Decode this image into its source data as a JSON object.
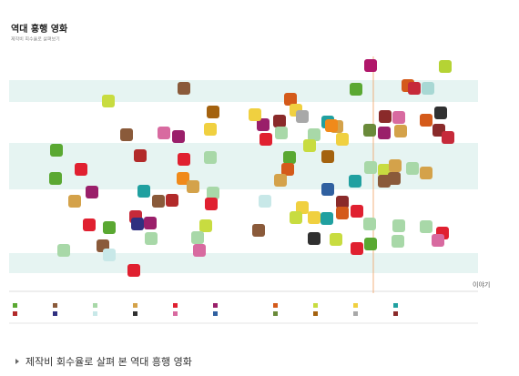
{
  "chart_data": {
    "type": "scatter",
    "title": "역대 흥행 영화",
    "subtitle": "제작비 회수율로 살펴보기",
    "brand": "이야기",
    "caption": "제작비 회수율로 살펴 본 역대 흥행 영화",
    "xlim": [
      0,
      515
    ],
    "ylim": [
      0,
      260
    ],
    "x": [
      397,
      479,
      381,
      438,
      445,
      460,
      109,
      192,
      309,
      224,
      315,
      322,
      279,
      297,
      270,
      350,
      360,
      413,
      428,
      458,
      474,
      129,
      170,
      186,
      221,
      335,
      354,
      366,
      396,
      412,
      430,
      472,
      482,
      299,
      282,
      330,
      52,
      144,
      221,
      192,
      350,
      308,
      397,
      412,
      424,
      443,
      458,
      79,
      306,
      51,
      191,
      298,
      380,
      412,
      423,
      91,
      148,
      202,
      224,
      350,
      164,
      179,
      222,
      72,
      281,
      322,
      366,
      366,
      349,
      382,
      139,
      141,
      155,
      315,
      335,
      88,
      110,
      216,
      396,
      428,
      458,
      476,
      274,
      207,
      156,
      335,
      359,
      382,
      397,
      471,
      209,
      60,
      103,
      110,
      137,
      427
    ],
    "y": [
      248,
      247,
      222,
      226,
      223,
      223,
      209,
      223,
      211,
      197,
      199,
      192,
      183,
      187,
      194,
      186,
      181,
      192,
      191,
      188,
      196,
      172,
      174,
      170,
      178,
      172,
      182,
      167,
      177,
      174,
      176,
      177,
      169,
      174,
      167,
      160,
      155,
      149,
      147,
      145,
      148,
      147,
      136,
      133,
      138,
      135,
      130,
      134,
      134,
      124,
      124,
      122,
      121,
      121,
      124,
      109,
      110,
      115,
      108,
      112,
      99,
      100,
      96,
      99,
      99,
      92,
      98,
      86,
      80,
      88,
      82,
      74,
      75,
      81,
      81,
      73,
      70,
      72,
      74,
      72,
      71,
      64,
      67,
      59,
      58,
      58,
      57,
      47,
      52,
      56,
      45,
      45,
      50,
      40,
      23,
      55
    ],
    "colors": [
      "#b0176a",
      "#b5d334",
      "#5aa832",
      "#d45a1a",
      "#c62a3a",
      "#a8d8d4",
      "#c8dc40",
      "#8a5a3a",
      "#d45a1a",
      "#a4620f",
      "#f0d040",
      "#a8a8a8",
      "#9a1f6a",
      "#8a2a2a",
      "#f0d040",
      "#20a0a0",
      "#d4a24a",
      "#8a2a2a",
      "#d86aa0",
      "#d45a1a",
      "#303030",
      "#8a5a3a",
      "#d86aa0",
      "#9a1f6a",
      "#f0d040",
      "#a8d8a8",
      "#f08a1a",
      "#f0d040",
      "#6a8a3a",
      "#9a1f6a",
      "#d4a24a",
      "#8a2a2a",
      "#c62a3a",
      "#a8d8a8",
      "#e02030",
      "#c8dc40",
      "#5aa832",
      "#b22a2a",
      "#a8d8a8",
      "#e02030",
      "#a4620f",
      "#5aa832",
      "#a8d8a8",
      "#c8dc40",
      "#d4a24a",
      "#a8d8a8",
      "#d4a24a",
      "#e02030",
      "#d45a1a",
      "#5aa832",
      "#f08a1a",
      "#d4a24a",
      "#20a0a0",
      "#8a5a3a",
      "#8a5a3a",
      "#9a1f6a",
      "#20a0a0",
      "#d4a24a",
      "#a8d8a8",
      "#3060a0",
      "#8a5a3a",
      "#b22a2a",
      "#e02030",
      "#d4a24a",
      "#c8e8e8",
      "#f0d040",
      "#8a2a2a",
      "#d45a1a",
      "#20a0a0",
      "#e02030",
      "#c62a3a",
      "#303080",
      "#9a1f6a",
      "#c8dc40",
      "#f0d040",
      "#e02030",
      "#5aa832",
      "#c8dc40",
      "#a8d8a8",
      "#a8d8a8",
      "#a8d8a8",
      "#e02030",
      "#8a5a3a",
      "#a8d8a8",
      "#a8d8a8",
      "#303030",
      "#c8dc40",
      "#e02030",
      "#5aa832",
      "#d86aa0",
      "#d86aa0",
      "#a8d8a8",
      "#8a5a3a",
      "#c8e8e8",
      "#e02030",
      "#a8d8a8"
    ]
  }
}
